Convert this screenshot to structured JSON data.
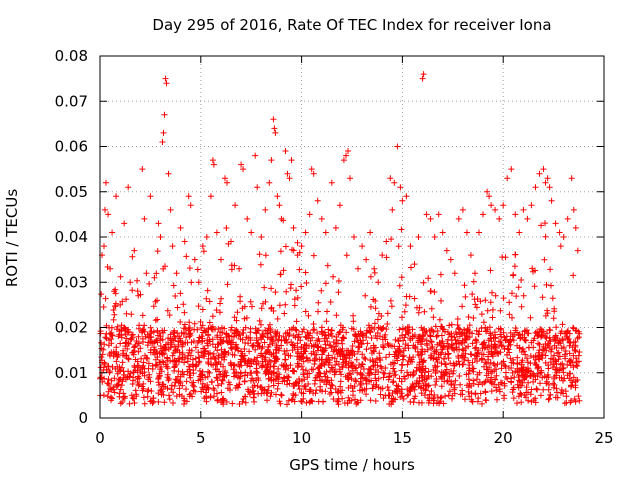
{
  "chart_data": {
    "type": "scatter",
    "title": "Day 295 of 2016, Rate Of TEC Index for receiver Iona",
    "xlabel": "GPS time / hours",
    "ylabel": "ROTI / TECUs",
    "xlim": [
      0,
      25
    ],
    "ylim": [
      0,
      0.08
    ],
    "xticks": [
      0,
      5,
      10,
      15,
      20,
      25
    ],
    "xtick_labels": [
      "0",
      "5",
      "10",
      "15",
      "20",
      "25"
    ],
    "yticks": [
      0,
      0.01,
      0.02,
      0.03,
      0.04,
      0.05,
      0.06,
      0.07,
      0.08
    ],
    "ytick_labels": [
      "0",
      "0.01",
      "0.02",
      "0.03",
      "0.04",
      "0.05",
      "0.06",
      "0.07",
      "0.08"
    ],
    "grid": true,
    "marker": "+",
    "color": "#ff0000",
    "series": [
      {
        "name": "ROTI",
        "points": [
          [
            0.1,
            0.036
          ],
          [
            0.2,
            0.038
          ],
          [
            0.25,
            0.046
          ],
          [
            0.3,
            0.052
          ],
          [
            0.4,
            0.045
          ],
          [
            0.5,
            0.033
          ],
          [
            0.6,
            0.041
          ],
          [
            0.7,
            0.028
          ],
          [
            0.8,
            0.049
          ],
          [
            1.0,
            0.025
          ],
          [
            1.2,
            0.043
          ],
          [
            1.4,
            0.051
          ],
          [
            1.5,
            0.03
          ],
          [
            1.7,
            0.037
          ],
          [
            1.9,
            0.027
          ],
          [
            2.1,
            0.055
          ],
          [
            2.2,
            0.044
          ],
          [
            2.3,
            0.032
          ],
          [
            2.5,
            0.049
          ],
          [
            2.7,
            0.031
          ],
          [
            2.9,
            0.043
          ],
          [
            3.0,
            0.04
          ],
          [
            3.1,
            0.061
          ],
          [
            3.15,
            0.063
          ],
          [
            3.2,
            0.067
          ],
          [
            3.25,
            0.075
          ],
          [
            3.3,
            0.074
          ],
          [
            3.4,
            0.054
          ],
          [
            3.5,
            0.046
          ],
          [
            3.6,
            0.038
          ],
          [
            3.8,
            0.032
          ],
          [
            4.0,
            0.042
          ],
          [
            4.2,
            0.039
          ],
          [
            4.4,
            0.049
          ],
          [
            4.5,
            0.047
          ],
          [
            4.7,
            0.035
          ],
          [
            4.9,
            0.03
          ],
          [
            5.1,
            0.038
          ],
          [
            5.3,
            0.04
          ],
          [
            5.5,
            0.049
          ],
          [
            5.6,
            0.057
          ],
          [
            5.65,
            0.056
          ],
          [
            5.8,
            0.041
          ],
          [
            6.0,
            0.035
          ],
          [
            6.2,
            0.053
          ],
          [
            6.3,
            0.052
          ],
          [
            6.5,
            0.039
          ],
          [
            6.7,
            0.047
          ],
          [
            6.9,
            0.033
          ],
          [
            7.0,
            0.056
          ],
          [
            7.1,
            0.055
          ],
          [
            7.3,
            0.044
          ],
          [
            7.5,
            0.041
          ],
          [
            7.7,
            0.058
          ],
          [
            7.8,
            0.051
          ],
          [
            8.0,
            0.04
          ],
          [
            8.2,
            0.046
          ],
          [
            8.4,
            0.052
          ],
          [
            8.5,
            0.057
          ],
          [
            8.6,
            0.066
          ],
          [
            8.65,
            0.064
          ],
          [
            8.7,
            0.063
          ],
          [
            8.8,
            0.049
          ],
          [
            8.9,
            0.047
          ],
          [
            9.0,
            0.044
          ],
          [
            9.2,
            0.059
          ],
          [
            9.3,
            0.054
          ],
          [
            9.4,
            0.053
          ],
          [
            9.5,
            0.057
          ],
          [
            9.6,
            0.042
          ],
          [
            9.8,
            0.036
          ],
          [
            10.0,
            0.038
          ],
          [
            10.2,
            0.041
          ],
          [
            10.4,
            0.045
          ],
          [
            10.5,
            0.055
          ],
          [
            10.6,
            0.054
          ],
          [
            10.8,
            0.048
          ],
          [
            11.0,
            0.044
          ],
          [
            11.2,
            0.041
          ],
          [
            11.5,
            0.052
          ],
          [
            11.7,
            0.042
          ],
          [
            11.9,
            0.047
          ],
          [
            12.1,
            0.057
          ],
          [
            12.2,
            0.058
          ],
          [
            12.3,
            0.059
          ],
          [
            12.4,
            0.053
          ],
          [
            12.6,
            0.04
          ],
          [
            12.8,
            0.033
          ],
          [
            13.0,
            0.038
          ],
          [
            13.2,
            0.035
          ],
          [
            13.4,
            0.041
          ],
          [
            13.6,
            0.033
          ],
          [
            13.8,
            0.03
          ],
          [
            14.0,
            0.036
          ],
          [
            14.2,
            0.039
          ],
          [
            14.4,
            0.053
          ],
          [
            14.5,
            0.046
          ],
          [
            14.6,
            0.052
          ],
          [
            14.75,
            0.06
          ],
          [
            14.9,
            0.051
          ],
          [
            15.0,
            0.048
          ],
          [
            15.2,
            0.049
          ],
          [
            15.4,
            0.038
          ],
          [
            15.6,
            0.034
          ],
          [
            15.8,
            0.04
          ],
          [
            16.0,
            0.075
          ],
          [
            16.05,
            0.076
          ],
          [
            16.2,
            0.045
          ],
          [
            16.4,
            0.044
          ],
          [
            16.6,
            0.04
          ],
          [
            16.8,
            0.045
          ],
          [
            17.0,
            0.041
          ],
          [
            17.2,
            0.037
          ],
          [
            17.4,
            0.035
          ],
          [
            17.6,
            0.032
          ],
          [
            17.8,
            0.044
          ],
          [
            18.0,
            0.046
          ],
          [
            18.2,
            0.041
          ],
          [
            18.4,
            0.036
          ],
          [
            18.6,
            0.032
          ],
          [
            18.8,
            0.041
          ],
          [
            19.0,
            0.045
          ],
          [
            19.2,
            0.05
          ],
          [
            19.3,
            0.049
          ],
          [
            19.4,
            0.047
          ],
          [
            19.6,
            0.046
          ],
          [
            19.8,
            0.044
          ],
          [
            20.0,
            0.047
          ],
          [
            20.2,
            0.053
          ],
          [
            20.4,
            0.055
          ],
          [
            20.6,
            0.045
          ],
          [
            20.8,
            0.041
          ],
          [
            21.0,
            0.046
          ],
          [
            21.2,
            0.044
          ],
          [
            21.4,
            0.047
          ],
          [
            21.6,
            0.051
          ],
          [
            21.8,
            0.054
          ],
          [
            22.0,
            0.055
          ],
          [
            22.1,
            0.052
          ],
          [
            22.2,
            0.053
          ],
          [
            22.3,
            0.051
          ],
          [
            22.4,
            0.048
          ],
          [
            22.6,
            0.043
          ],
          [
            22.8,
            0.041
          ],
          [
            23.0,
            0.04
          ],
          [
            23.2,
            0.044
          ],
          [
            23.4,
            0.053
          ],
          [
            23.5,
            0.046
          ],
          [
            23.6,
            0.042
          ],
          [
            23.7,
            0.037
          ]
        ],
        "band": {
          "x_start": 0.0,
          "x_end": 23.8,
          "dense_range": [
            0.003,
            0.02
          ],
          "profile": [
            [
              0.0,
              0.018,
              0.042
            ],
            [
              1.0,
              0.019,
              0.035
            ],
            [
              2.0,
              0.016,
              0.033
            ],
            [
              3.0,
              0.018,
              0.04
            ],
            [
              4.0,
              0.014,
              0.032
            ],
            [
              5.0,
              0.018,
              0.039
            ],
            [
              6.0,
              0.02,
              0.041
            ],
            [
              7.0,
              0.019,
              0.038
            ],
            [
              8.0,
              0.022,
              0.043
            ],
            [
              9.0,
              0.026,
              0.046
            ],
            [
              10.0,
              0.02,
              0.038
            ],
            [
              11.0,
              0.018,
              0.036
            ],
            [
              12.0,
              0.019,
              0.038
            ],
            [
              13.0,
              0.015,
              0.032
            ],
            [
              14.0,
              0.018,
              0.035
            ],
            [
              15.0,
              0.021,
              0.04
            ],
            [
              16.0,
              0.017,
              0.032
            ],
            [
              17.0,
              0.016,
              0.031
            ],
            [
              18.0,
              0.017,
              0.033
            ],
            [
              19.0,
              0.019,
              0.036
            ],
            [
              20.0,
              0.02,
              0.038
            ],
            [
              21.0,
              0.018,
              0.037
            ],
            [
              22.0,
              0.022,
              0.044
            ],
            [
              23.0,
              0.019,
              0.036
            ],
            [
              23.8,
              0.016,
              0.03
            ]
          ]
        }
      }
    ]
  }
}
